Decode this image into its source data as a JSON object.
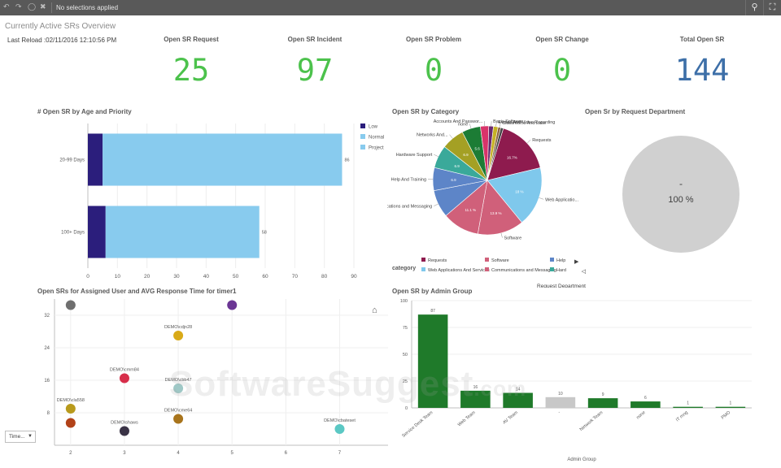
{
  "toolbar": {
    "selection_text": "No selections applied"
  },
  "sheet": {
    "title": "Currently Active SRs Overview",
    "last_reload": "Last Reload :02/11/2016 12:10:56 PM"
  },
  "kpis": [
    {
      "label": "Open SR Request",
      "value": "25",
      "color": "#4cc24c"
    },
    {
      "label": "Open SR Incident",
      "value": "97",
      "color": "#4cc24c"
    },
    {
      "label": "Open SR Problem",
      "value": "0",
      "color": "#4cc24c"
    },
    {
      "label": "Open SR Change",
      "value": "0",
      "color": "#4cc24c"
    },
    {
      "label": "Total Open SR",
      "value": "144",
      "color": "#3d6fa8"
    }
  ],
  "panels": {
    "age_priority_title": "# Open SR by Age and Priority",
    "category_title": "Open SR by Category",
    "department_title": "Open Sr by Request Department",
    "scatter_title": "Open SRs for Assigned User and AVG Response Time for timer1",
    "admin_title": "Open SR by Admin Group"
  },
  "department": {
    "dash": "-",
    "percent": "100 %"
  },
  "controls": {
    "time_dropdown": "Time..."
  },
  "watermark": {
    "text": "SoftwareSuggest",
    "suffix": ".com"
  },
  "chart_data": [
    {
      "type": "bar",
      "orientation": "horizontal",
      "stacked": true,
      "categories": [
        "20-99 Days",
        "100+ Days"
      ],
      "series": [
        {
          "name": "Low",
          "values": [
            5,
            6
          ],
          "color": "#2b1e7c"
        },
        {
          "name": "Normal",
          "values": [
            81,
            52
          ],
          "color": "#88cbee"
        },
        {
          "name": "Project",
          "values": [
            0,
            0
          ],
          "color": "#88cbee"
        }
      ],
      "totals": [
        "86",
        "58"
      ],
      "xticks": [
        "0",
        "10",
        "20",
        "30",
        "40",
        "50",
        "60",
        "70",
        "80",
        "90"
      ],
      "xlim": [
        0,
        90
      ],
      "legend": "right"
    },
    {
      "type": "pie",
      "slices": [
        {
          "label": "Requests",
          "value": 16.7,
          "pct_label": "16.7%",
          "color": "#8e1b4e"
        },
        {
          "label": "Web Applicatio...",
          "value": 18,
          "pct_label": "18 %",
          "color": "#7fc8ec"
        },
        {
          "label": "Software",
          "value": 13.9,
          "pct_label": "13.9 %",
          "color": "#d0607a"
        },
        {
          "label": "",
          "value": 11.1,
          "pct_label": "11.1 %",
          "color": "#d0607a"
        },
        {
          "label": "Communications and Messaging",
          "value": 8.3,
          "pct_label": "",
          "color": "#5d85c8"
        },
        {
          "label": "Help And Training",
          "value": 6.9,
          "pct_label": "6.9",
          "color": "#5d85c8"
        },
        {
          "label": "Hardware Support",
          "value": 6.9,
          "pct_label": "6.9",
          "color": "#3aa99a"
        },
        {
          "label": "Networks And...",
          "value": 6.9,
          "pct_label": "6.9",
          "color": "#a4a024"
        },
        {
          "label": "none",
          "value": 5.6,
          "pct_label": "5.6",
          "color": "#1c7c35"
        },
        {
          "label": "Accounts And Passwor...",
          "value": 2.5,
          "pct_label": "",
          "color": "#d8346a"
        },
        {
          "label": "Basic Software",
          "value": 1.4,
          "pct_label": "",
          "color": "#6b2a6e"
        },
        {
          "label": "Events And Video Recording",
          "value": 1.4,
          "pct_label": "",
          "color": "#c6b225"
        },
        {
          "label": "Classrooms And Labs",
          "value": 0.8,
          "pct_label": "",
          "color": "#8c6640"
        },
        {
          "label": "",
          "value": 0.8,
          "pct_label": "",
          "color": "#444444"
        }
      ],
      "legend_title": "category",
      "legend": [
        {
          "label": "Requests",
          "color": "#8e1b4e"
        },
        {
          "label": "Software",
          "color": "#d0607a"
        },
        {
          "label": "Help",
          "color": "#5d85c8"
        },
        {
          "label": "Web Applications And Services",
          "color": "#7fc8ec"
        },
        {
          "label": "Communications and Messaging",
          "color": "#d0607a"
        },
        {
          "label": "Hard",
          "color": "#3aa99a"
        }
      ],
      "extra_legend": "Request Department"
    },
    {
      "type": "pie",
      "slices": [
        {
          "label": "",
          "value": 100,
          "pct_label": "100 %",
          "color": "#d0d0d0"
        }
      ]
    },
    {
      "type": "scatter",
      "x_ticks": [
        "2",
        "3",
        "4",
        "5",
        "6",
        "7"
      ],
      "y_ticks": [
        "8",
        "16",
        "24",
        "32"
      ],
      "xlim": [
        1.7,
        7.9
      ],
      "ylim": [
        0,
        36
      ],
      "points": [
        {
          "label": "",
          "x": 2,
          "y": 34.5,
          "color": "#6f6f6f"
        },
        {
          "label": "DEMO\\cla558",
          "x": 2,
          "y": 9,
          "color": "#b89a1c"
        },
        {
          "label": "",
          "x": 2,
          "y": 5.5,
          "color": "#b24218"
        },
        {
          "label": "DEMO\\cmm84",
          "x": 3,
          "y": 16.5,
          "color": "#d72e4a"
        },
        {
          "label": "DEMO\\shaws",
          "x": 3,
          "y": 3.5,
          "color": "#3a3346"
        },
        {
          "label": "DEMO\\cdjn28",
          "x": 4,
          "y": 27,
          "color": "#d9aa18"
        },
        {
          "label": "DEMO\\cbb47",
          "x": 4,
          "y": 14,
          "color": "#9fc8c6"
        },
        {
          "label": "DEMO\\cme64",
          "x": 4,
          "y": 6.5,
          "color": "#a8741c"
        },
        {
          "label": "",
          "x": 5,
          "y": 34.5,
          "color": "#6b3694"
        },
        {
          "label": "DEMO\\cbateset",
          "x": 7,
          "y": 4,
          "color": "#5bc8c4"
        }
      ]
    },
    {
      "type": "bar",
      "categories": [
        "Service Desk Team",
        "Web Team",
        "AV Team",
        "-",
        "Network Team",
        "none",
        "IT mng",
        "PMO"
      ],
      "values": [
        87,
        16,
        14,
        10,
        9,
        6,
        1,
        1
      ],
      "colors": [
        "#1f7a2a",
        "#1f7a2a",
        "#1f7a2a",
        "#c8c8c8",
        "#1f7a2a",
        "#1f7a2a",
        "#1f7a2a",
        "#1f7a2a"
      ],
      "yticks": [
        "0",
        "25",
        "50",
        "75",
        "100"
      ],
      "ylim": [
        0,
        100
      ],
      "xlabel": "Admin Group"
    }
  ]
}
